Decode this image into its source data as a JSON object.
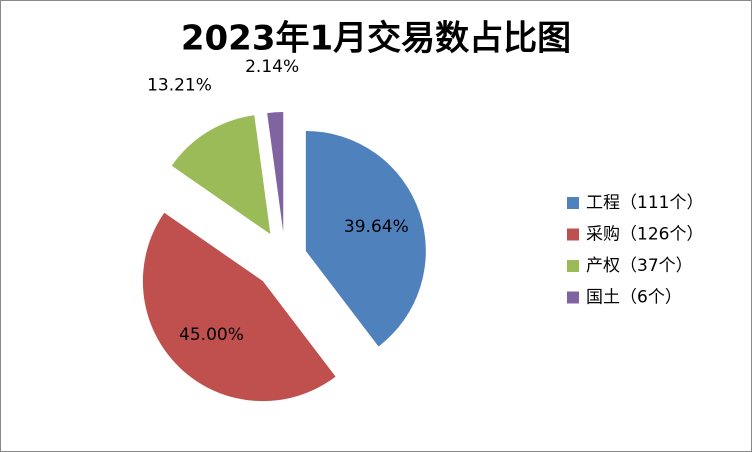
{
  "chart_data": {
    "type": "pie",
    "title": "2023年1月交易数占比图",
    "categories": [
      "工程（111个）",
      "采购（126个）",
      "产权（37个）",
      "国土（6个）"
    ],
    "values": [
      39.64,
      45.0,
      13.21,
      2.14
    ],
    "value_labels": [
      "39.64%",
      "45.00%",
      "13.21%",
      "2.14%"
    ],
    "colors": [
      "#4f81bd",
      "#c0504d",
      "#9bbb59",
      "#8064a2"
    ],
    "legend": "right"
  }
}
